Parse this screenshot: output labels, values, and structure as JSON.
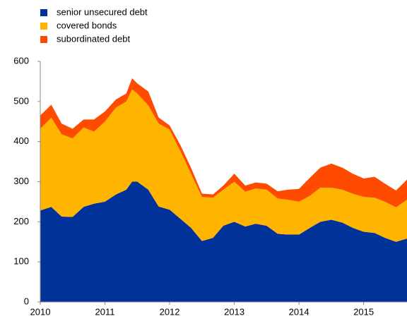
{
  "chart_data": {
    "type": "stacked-area",
    "x": [
      2010,
      2010.17,
      2010.33,
      2010.5,
      2010.67,
      2010.83,
      2011,
      2011.17,
      2011.33,
      2011.42,
      2011.5,
      2011.67,
      2011.83,
      2012,
      2012.17,
      2012.33,
      2012.5,
      2012.67,
      2012.83,
      2013,
      2013.17,
      2013.33,
      2013.5,
      2013.67,
      2013.83,
      2014,
      2014.17,
      2014.33,
      2014.5,
      2014.67,
      2014.83,
      2015,
      2015.17,
      2015.33,
      2015.5,
      2015.67
    ],
    "series": [
      {
        "name": "senior unsecured debt",
        "color": "#003299",
        "values": [
          228,
          237,
          213,
          212,
          237,
          245,
          250,
          268,
          280,
          300,
          300,
          280,
          238,
          230,
          207,
          185,
          152,
          160,
          190,
          200,
          188,
          195,
          190,
          170,
          168,
          168,
          185,
          200,
          205,
          198,
          185,
          175,
          172,
          160,
          150,
          158
        ]
      },
      {
        "name": "covered bonds",
        "color": "#ffb400",
        "values": [
          204,
          223,
          205,
          196,
          198,
          180,
          200,
          217,
          220,
          230,
          220,
          210,
          207,
          200,
          168,
          135,
          110,
          100,
          90,
          100,
          87,
          88,
          90,
          88,
          87,
          82,
          80,
          85,
          80,
          82,
          85,
          87,
          88,
          90,
          86,
          97
        ]
      },
      {
        "name": "subordinated debt",
        "color": "#ff4b00",
        "values": [
          33,
          32,
          27,
          24,
          20,
          30,
          25,
          20,
          20,
          28,
          25,
          35,
          15,
          10,
          15,
          15,
          8,
          8,
          10,
          20,
          15,
          15,
          15,
          18,
          25,
          32,
          45,
          50,
          60,
          55,
          50,
          46,
          52,
          45,
          42,
          50
        ]
      }
    ],
    "xlim": [
      2010,
      2015.67
    ],
    "xticks": [
      2010,
      2011,
      2012,
      2013,
      2014,
      2015
    ],
    "ylim": [
      0,
      600
    ],
    "yticks": [
      0,
      100,
      200,
      300,
      400,
      500,
      600
    ],
    "grid": false,
    "legend": "top-left"
  }
}
